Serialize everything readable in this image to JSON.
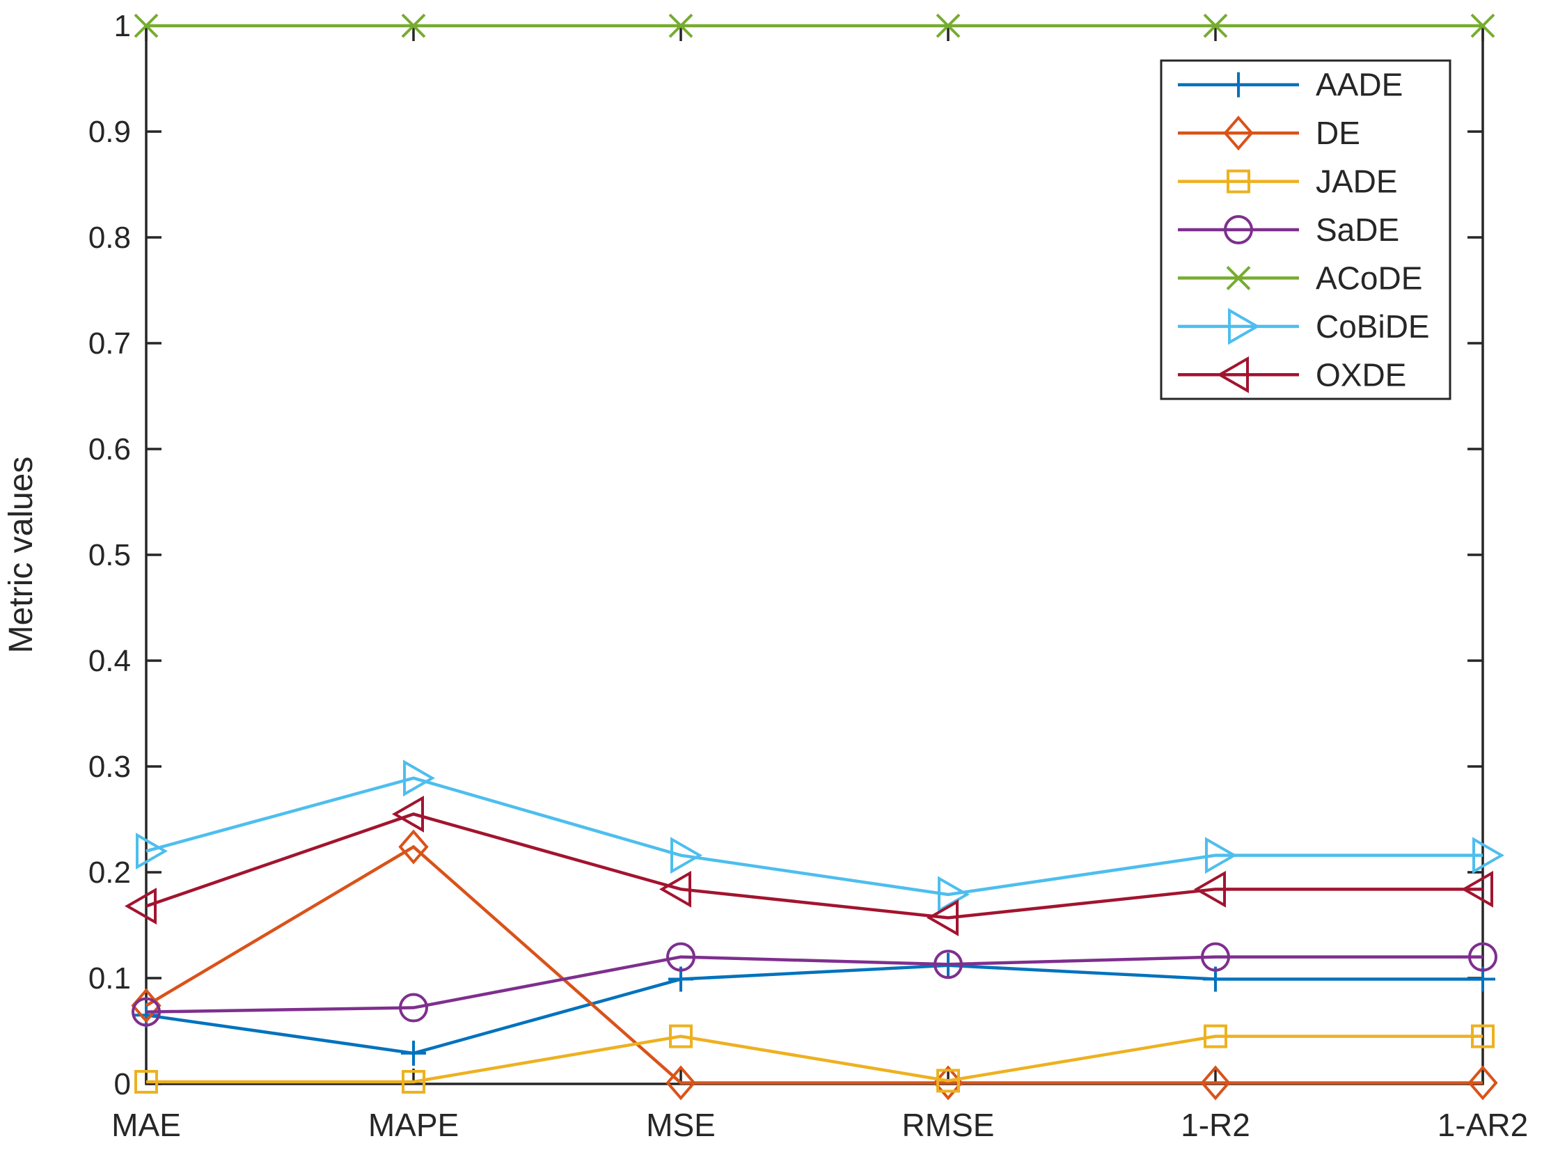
{
  "figure": {
    "background": "#ffffff",
    "axis_color": "#262626"
  },
  "chart_data": {
    "type": "line",
    "title": "",
    "xlabel": "",
    "ylabel": "Metric values",
    "categories": [
      "MAE",
      "MAPE",
      "MSE",
      "RMSE",
      "1-R2",
      "1-AR2"
    ],
    "ylim": [
      0,
      1
    ],
    "yticks": [
      0,
      0.1,
      0.2,
      0.3,
      0.4,
      0.5,
      0.6,
      0.7,
      0.8,
      0.9,
      1
    ],
    "ytick_labels": [
      "0",
      "0.1",
      "0.2",
      "0.3",
      "0.4",
      "0.5",
      "0.6",
      "0.7",
      "0.8",
      "0.9",
      "1"
    ],
    "grid": false,
    "legend_position": "top-right",
    "series": [
      {
        "name": "AADE",
        "color": "#0072BD",
        "marker": "plus",
        "values": [
          0.065,
          0.029,
          0.099,
          0.112,
          0.099,
          0.099
        ]
      },
      {
        "name": "DE",
        "color": "#D95319",
        "marker": "diamond",
        "values": [
          0.074,
          0.224,
          0.001,
          0.001,
          0.001,
          0.001
        ]
      },
      {
        "name": "JADE",
        "color": "#EDB120",
        "marker": "square",
        "values": [
          0.002,
          0.002,
          0.045,
          0.003,
          0.045,
          0.045
        ]
      },
      {
        "name": "SaDE",
        "color": "#7E2F8E",
        "marker": "circle",
        "values": [
          0.068,
          0.072,
          0.12,
          0.113,
          0.12,
          0.12
        ]
      },
      {
        "name": "ACoDE",
        "color": "#77AC30",
        "marker": "x",
        "values": [
          1,
          1,
          1,
          1,
          1,
          1
        ]
      },
      {
        "name": "CoBiDE",
        "color": "#4DBEEE",
        "marker": "triangle-right",
        "values": [
          0.22,
          0.289,
          0.216,
          0.179,
          0.216,
          0.216
        ]
      },
      {
        "name": "OXDE",
        "color": "#A2142F",
        "marker": "triangle-left",
        "values": [
          0.168,
          0.255,
          0.184,
          0.157,
          0.184,
          0.184
        ]
      }
    ]
  }
}
